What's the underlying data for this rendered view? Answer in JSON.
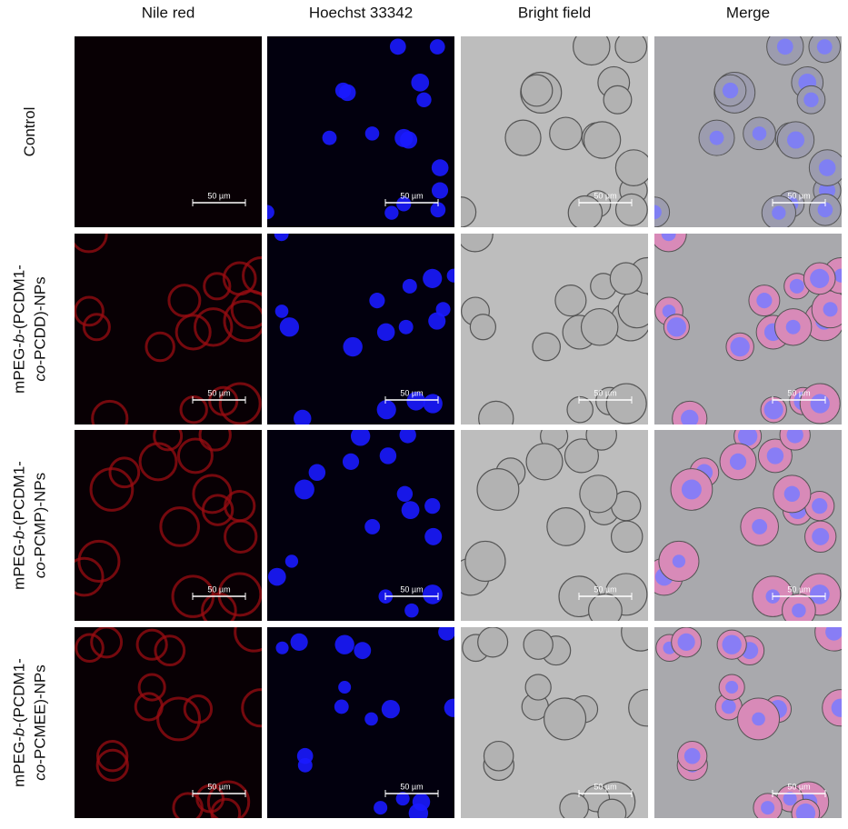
{
  "columns": [
    "Nile red",
    "Hoechst 33342",
    "Bright field",
    "Merge"
  ],
  "rows": [
    {
      "label": [
        [
          {
            "text": "Control"
          }
        ]
      ],
      "scale_bars": [
        "50 µm",
        "50 µm",
        "50 µm",
        "50 µm"
      ]
    },
    {
      "label": [
        [
          {
            "text": "mPEG-"
          },
          {
            "text": "b",
            "italic": true
          },
          {
            "text": "-(PCDM1-"
          }
        ],
        [
          {
            "text": "co",
            "italic": true
          },
          {
            "text": "-PCDD)-NPs"
          }
        ]
      ],
      "scale_bars": [
        "50 µm",
        "50 µm",
        "50 µm",
        "50 µm"
      ]
    },
    {
      "label": [
        [
          {
            "text": "mPEG-"
          },
          {
            "text": "b",
            "italic": true
          },
          {
            "text": "-(PCDM1-"
          }
        ],
        [
          {
            "text": "co",
            "italic": true
          },
          {
            "text": "-PCMP)-NPs"
          }
        ]
      ],
      "scale_bars": [
        "50 µm",
        "50 µm",
        "50 µm",
        "50 µm"
      ]
    },
    {
      "label": [
        [
          {
            "text": "mPEG-"
          },
          {
            "text": "b",
            "italic": true
          },
          {
            "text": "-(PCDM1-"
          }
        ],
        [
          {
            "text": "co",
            "italic": true
          },
          {
            "text": "-PCMEE)-NPs"
          }
        ]
      ],
      "scale_bars": [
        "50 µm",
        "50 µm",
        "50 µm",
        "50 µm"
      ]
    }
  ]
}
